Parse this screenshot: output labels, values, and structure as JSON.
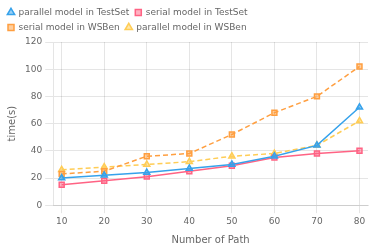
{
  "chart_data": {
    "type": "line",
    "xlabel": "Number of Path",
    "ylabel": "time(s)",
    "x": [
      10,
      20,
      30,
      40,
      50,
      60,
      70,
      80
    ],
    "series": [
      {
        "name": "parallel model in TestSet",
        "values": [
          20,
          22,
          24,
          27,
          30,
          36,
          44,
          72
        ],
        "marker": "triangle",
        "line_style": "solid"
      },
      {
        "name": "serial model in TestSet",
        "values": [
          15,
          18,
          21,
          25,
          29,
          35,
          38,
          40
        ],
        "marker": "square",
        "line_style": "solid"
      },
      {
        "name": "serial model in WSBen",
        "values": [
          23,
          25,
          36,
          38,
          52,
          68,
          80,
          102
        ],
        "marker": "square",
        "line_style": "dashed"
      },
      {
        "name": "parallel model in WSBen",
        "values": [
          26,
          28,
          30,
          32,
          36,
          38,
          44,
          62
        ],
        "marker": "triangle",
        "line_style": "dashed"
      }
    ],
    "xlim": [
      8,
      82
    ],
    "xticks": [
      10,
      20,
      30,
      40,
      50,
      60,
      70,
      80
    ],
    "ylim": [
      0,
      120
    ],
    "yticks": [
      0,
      20,
      40,
      60,
      80,
      100,
      120
    ],
    "grid": true,
    "legend": "upper left"
  }
}
